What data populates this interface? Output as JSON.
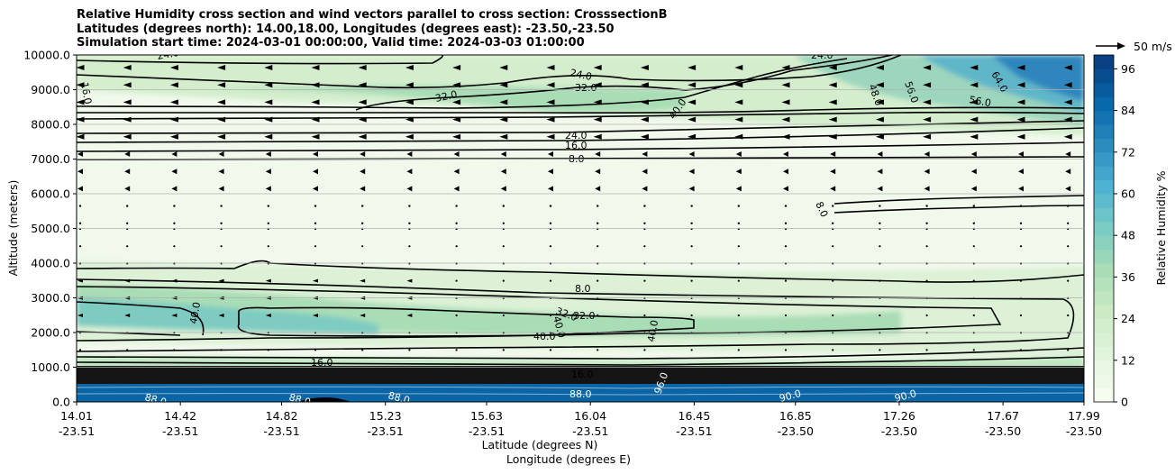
{
  "chart_data": {
    "type": "contour",
    "title_lines": [
      "Relative Humidity cross section and wind vectors parallel to cross section: CrosssectionB",
      "Latitudes (degrees north): 14.00,18.00, Longitudes (degrees east): -23.50,-23.50",
      "Simulation start time: 2024-03-01 00:00:00, Valid time: 2024-03-03 01:00:00"
    ],
    "ylabel": "Altitude (meters)",
    "xlabel_lat": "Latitude (degrees N)",
    "xlabel_lon": "Longitude (degrees E)",
    "ylim": [
      0,
      10000
    ],
    "y_ticks": [
      "0.0",
      "1000.0",
      "2000.0",
      "3000.0",
      "4000.0",
      "5000.0",
      "6000.0",
      "7000.0",
      "8000.0",
      "9000.0",
      "10000.0"
    ],
    "x_ticks": [
      {
        "lat": "14.01",
        "lon": "-23.51"
      },
      {
        "lat": "14.42",
        "lon": "-23.51"
      },
      {
        "lat": "14.82",
        "lon": "-23.51"
      },
      {
        "lat": "15.23",
        "lon": "-23.51"
      },
      {
        "lat": "15.63",
        "lon": "-23.51"
      },
      {
        "lat": "16.04",
        "lon": "-23.51"
      },
      {
        "lat": "16.45",
        "lon": "-23.51"
      },
      {
        "lat": "16.85",
        "lon": "-23.50"
      },
      {
        "lat": "17.26",
        "lon": "-23.50"
      },
      {
        "lat": "17.67",
        "lon": "-23.50"
      },
      {
        "lat": "17.99",
        "lon": "-23.50"
      }
    ],
    "colorbar": {
      "label": "Relative Humidity %",
      "ticks": [
        "0",
        "12",
        "24",
        "36",
        "48",
        "60",
        "72",
        "84",
        "96"
      ],
      "range": [
        0,
        100
      ]
    },
    "quiver_key": "50 m/s",
    "contour_labels": [
      "24.0",
      "32.0",
      "40.0",
      "48.0",
      "56.0",
      "64.0",
      "8.0",
      "16.0",
      "88.0",
      "90.0",
      "96.0"
    ]
  },
  "colors": {
    "cmap": [
      "#f7fcf0",
      "#e0f3db",
      "#ccebc5",
      "#a8ddb5",
      "#7bccc4",
      "#4eb3d3",
      "#2b8cbe",
      "#0868ac",
      "#084081"
    ]
  }
}
